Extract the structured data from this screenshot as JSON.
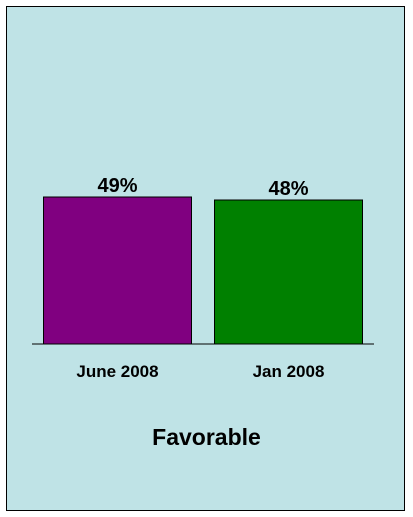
{
  "chart_data": {
    "type": "bar",
    "title": "",
    "caption": "Favorable",
    "categories": [
      "June 2008",
      "Jan 2008"
    ],
    "values": [
      49,
      48
    ],
    "value_labels": [
      "49%",
      "48%"
    ],
    "colors": [
      "#800080",
      "#008000"
    ],
    "xlabel": "",
    "ylabel": "",
    "ylim": [
      0,
      100
    ],
    "grid": false,
    "legend": "none"
  },
  "background_color": "#bfe3e6"
}
